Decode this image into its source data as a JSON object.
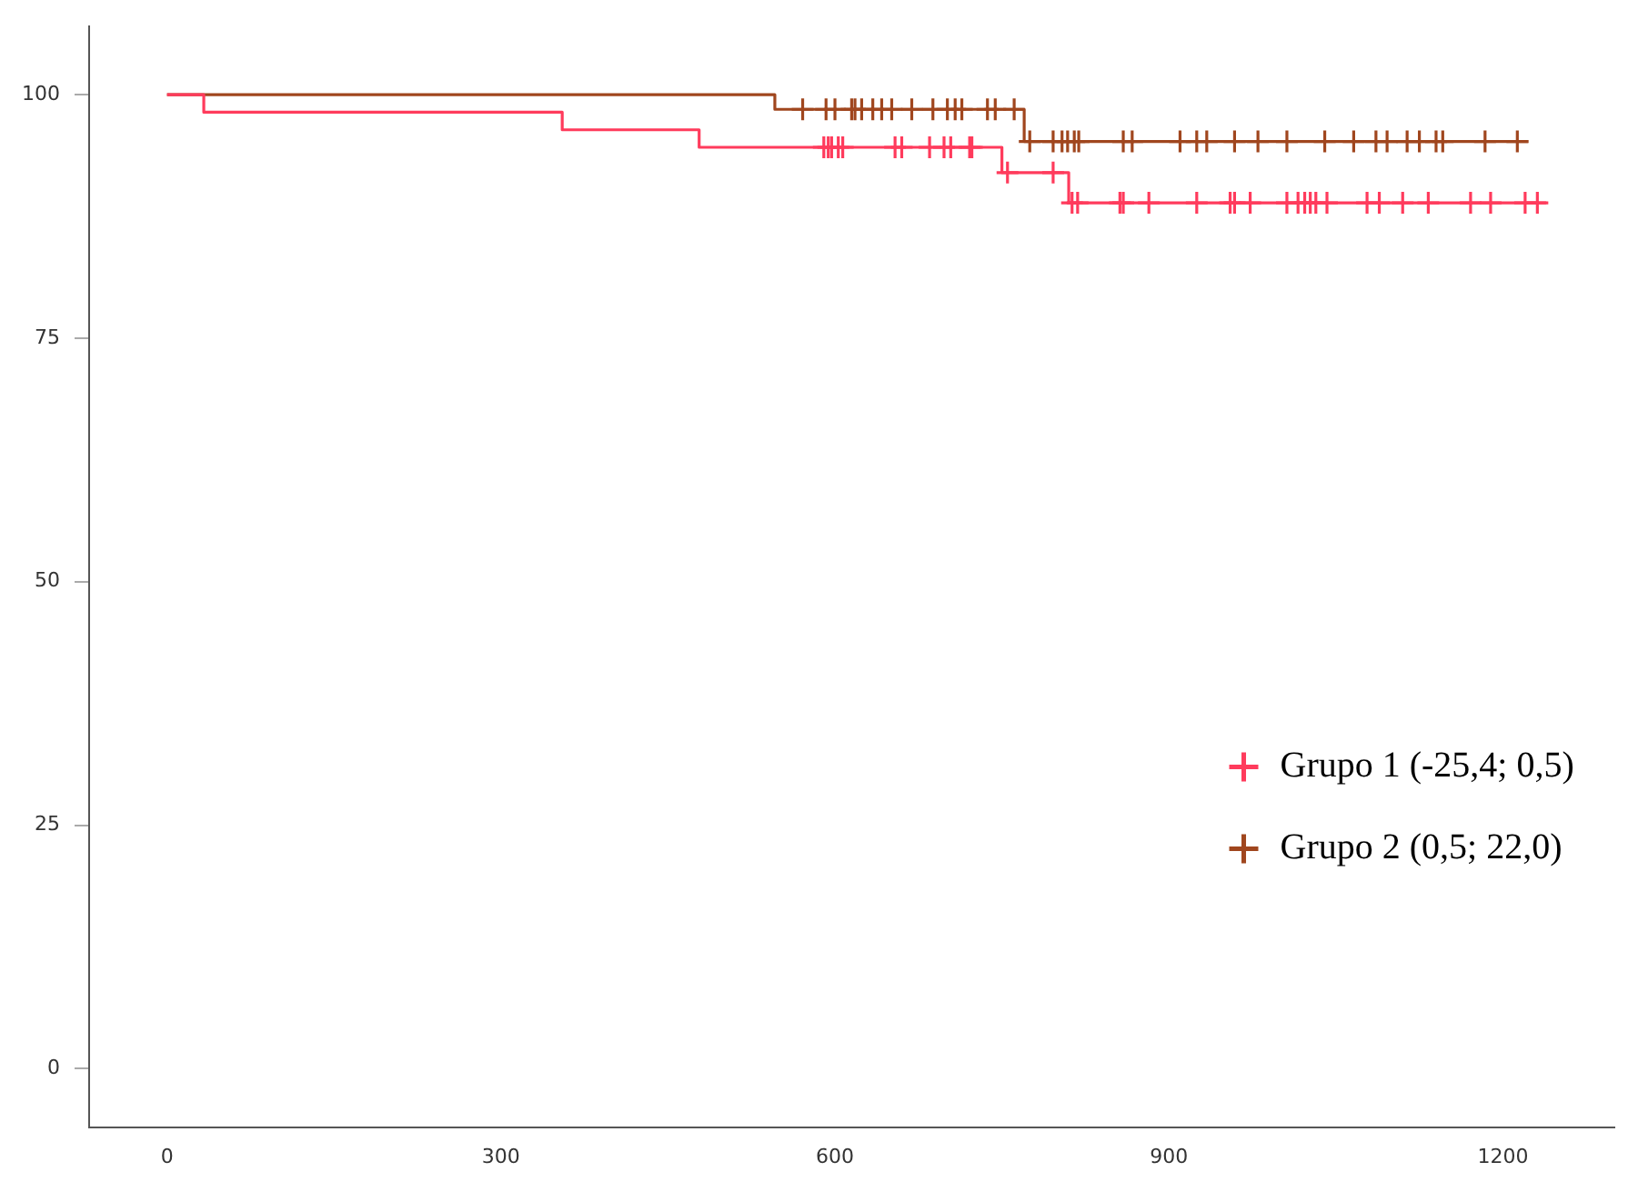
{
  "chart_data": {
    "type": "step",
    "xlim": [
      -70,
      1300
    ],
    "xticks": [
      0,
      300,
      600,
      900,
      1200
    ],
    "ylim": [
      -6,
      107
    ],
    "yticks": [
      0,
      25,
      50,
      75,
      100
    ],
    "grid": false,
    "legend": "bottom right",
    "series": [
      {
        "name": "Grupo 1 (-25,4; 0,5)",
        "color": "#ff3b5c",
        "marker": "none",
        "x": [
          0,
          33,
          355,
          478,
          750,
          810,
          1239
        ],
        "values": [
          100,
          98.2,
          96.4,
          94.6,
          92.0,
          88.9,
          88.9
        ]
      },
      {
        "name": "Grupo 2 (0,5; 22,0)",
        "color": "#a0461e",
        "marker": "none",
        "x": [
          0,
          546,
          770,
          1223
        ],
        "values": [
          100,
          98.5,
          95.2,
          95.2
        ]
      },
      {
        "type": "scatter",
        "color": "#ff3b5c",
        "marker": "cross",
        "x": [
          590,
          594,
          597,
          603,
          607,
          654,
          660,
          685,
          698,
          704,
          721,
          723,
          755,
          796,
          813,
          818,
          856,
          859,
          882,
          925,
          955,
          959,
          973,
          1006,
          1016,
          1022,
          1027,
          1032,
          1042,
          1078,
          1089,
          1110,
          1133,
          1171,
          1189,
          1220,
          1231
        ],
        "values": [
          94.6,
          94.6,
          94.6,
          94.6,
          94.6,
          94.6,
          94.6,
          94.6,
          94.6,
          94.6,
          94.6,
          94.6,
          92.0,
          92.0,
          88.9,
          88.9,
          88.9,
          88.9,
          88.9,
          88.9,
          88.9,
          88.9,
          88.9,
          88.9,
          88.9,
          88.9,
          88.9,
          88.9,
          88.9,
          88.9,
          88.9,
          88.9,
          88.9,
          88.9,
          88.9,
          88.9,
          88.9
        ]
      },
      {
        "type": "scatter",
        "color": "#a0461e",
        "marker": "cross",
        "x": [
          571,
          592,
          600,
          615,
          618,
          624,
          634,
          642,
          651,
          669,
          688,
          701,
          708,
          714,
          737,
          744,
          761,
          775,
          796,
          804,
          809,
          815,
          819,
          859,
          867,
          910,
          925,
          934,
          959,
          980,
          1006,
          1040,
          1066,
          1086,
          1096,
          1114,
          1125,
          1140,
          1146,
          1184,
          1213
        ],
        "values": [
          98.5,
          98.5,
          98.5,
          98.5,
          98.5,
          98.5,
          98.5,
          98.5,
          98.5,
          98.5,
          98.5,
          98.5,
          98.5,
          98.5,
          98.5,
          98.5,
          98.5,
          95.2,
          95.2,
          95.2,
          95.2,
          95.2,
          95.2,
          95.2,
          95.2,
          95.2,
          95.2,
          95.2,
          95.2,
          95.2,
          95.2,
          95.2,
          95.2,
          95.2,
          95.2,
          95.2,
          95.2,
          95.2,
          95.2,
          95.2,
          95.2
        ]
      }
    ]
  }
}
